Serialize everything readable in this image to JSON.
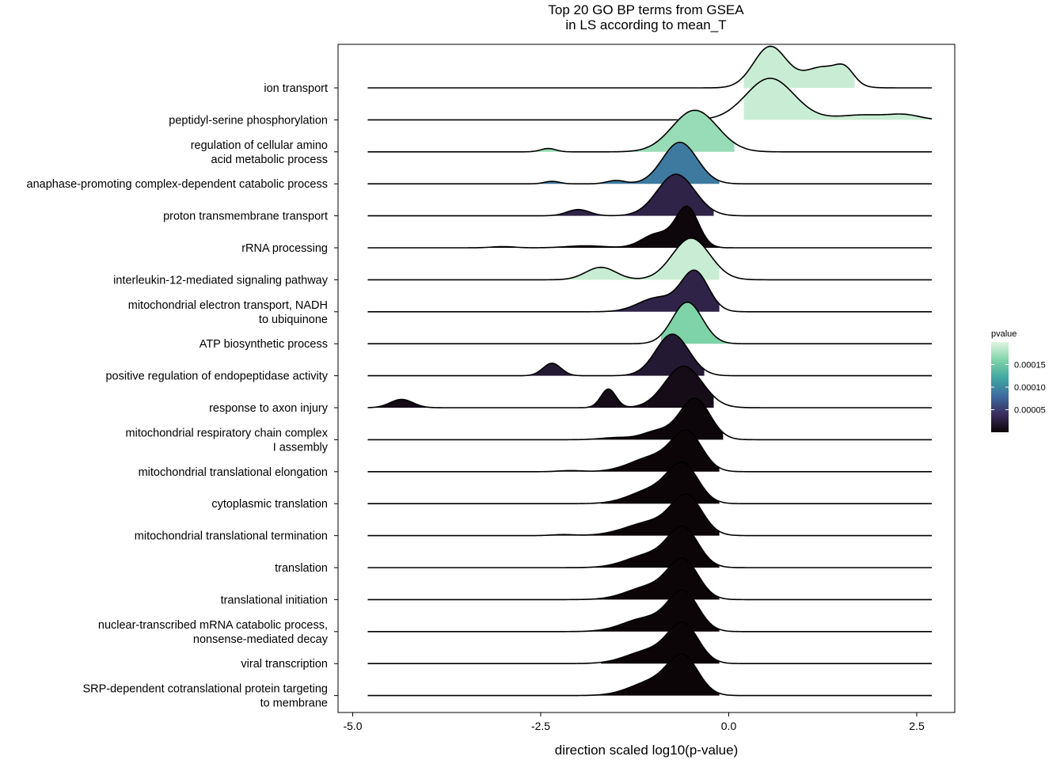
{
  "chart_data": {
    "type": "ridgeline",
    "title_lines": [
      "Top 20 GO BP terms from GSEA",
      "in LS according to mean_T"
    ],
    "xlabel": "direction scaled log10(p-value)",
    "ylabel": "",
    "xlim": [
      -5.2,
      3.0
    ],
    "xticks": [
      {
        "value": -5.0,
        "label": "-5.0"
      },
      {
        "value": -2.5,
        "label": "-2.5"
      },
      {
        "value": 0.0,
        "label": "0.0"
      },
      {
        "value": 2.5,
        "label": "2.5"
      }
    ],
    "grid": false,
    "legend": {
      "title": "pvalue",
      "position": "right",
      "range": [
        0.0,
        0.0002
      ],
      "ticks": [
        {
          "value": 0.00015,
          "label": "0.00015"
        },
        {
          "value": 0.0001,
          "label": "0.00010"
        },
        {
          "value": 5e-05,
          "label": "0.00005"
        }
      ],
      "colors": [
        "#0b0407",
        "#3b2d5e",
        "#3d6ba0",
        "#3fa6a0",
        "#7fd3a8",
        "#e2f5e2"
      ]
    },
    "color_scale": "mako",
    "curve_x_range": [
      -4.8,
      2.7
    ],
    "density_scale": 1.3,
    "series": [
      {
        "name": "ion transport",
        "label_lines": [
          "ion transport"
        ],
        "pvalue": 0.00019,
        "peaks": [
          [
            0.55,
            0.22,
            1.0
          ],
          [
            1.25,
            0.25,
            0.5
          ],
          [
            1.55,
            0.12,
            0.3
          ]
        ],
        "extent": [
          0.2,
          1.7
        ]
      },
      {
        "name": "peptidyl-serine phosphorylation",
        "label_lines": [
          "peptidyl-serine phosphorylation"
        ],
        "pvalue": 0.00019,
        "peaks": [
          [
            0.55,
            0.32,
            1.0
          ],
          [
            1.8,
            0.35,
            0.12
          ],
          [
            2.35,
            0.2,
            0.1
          ]
        ],
        "extent": [
          0.2,
          2.7
        ]
      },
      {
        "name": "regulation of cellular amino acid metabolic process",
        "label_lines": [
          "regulation of cellular amino",
          "acid metabolic process"
        ],
        "pvalue": 0.00017,
        "peaks": [
          [
            -0.45,
            0.3,
            1.0
          ],
          [
            -2.4,
            0.1,
            0.08
          ]
        ],
        "extent": [
          -2.6,
          0.1
        ]
      },
      {
        "name": "anaphase-promoting complex-dependent catabolic process",
        "label_lines": [
          "anaphase-promoting complex-dependent catabolic process"
        ],
        "pvalue": 9e-05,
        "peaks": [
          [
            -0.65,
            0.23,
            1.0
          ],
          [
            -1.5,
            0.12,
            0.08
          ],
          [
            -2.35,
            0.1,
            0.06
          ]
        ],
        "extent": [
          -2.5,
          -0.1
        ]
      },
      {
        "name": "proton transmembrane transport",
        "label_lines": [
          "proton transmembrane transport"
        ],
        "pvalue": 3e-05,
        "peaks": [
          [
            -0.7,
            0.25,
            1.0
          ],
          [
            -2.0,
            0.15,
            0.15
          ]
        ],
        "extent": [
          -2.4,
          -0.2
        ]
      },
      {
        "name": "rRNA processing",
        "label_lines": [
          "rRNA processing"
        ],
        "pvalue": 2e-06,
        "peaks": [
          [
            -0.55,
            0.15,
            1.0
          ],
          [
            -0.95,
            0.2,
            0.35
          ],
          [
            -1.9,
            0.25,
            0.05
          ],
          [
            -3.0,
            0.15,
            0.03
          ]
        ],
        "extent": [
          -3.3,
          -0.1
        ]
      },
      {
        "name": "interleukin-12-mediated signaling pathway",
        "label_lines": [
          "interleukin-12-mediated signaling pathway"
        ],
        "pvalue": 0.00019,
        "peaks": [
          [
            -0.5,
            0.25,
            1.0
          ],
          [
            -1.7,
            0.2,
            0.3
          ]
        ],
        "extent": [
          -2.2,
          -0.1
        ]
      },
      {
        "name": "mitochondrial electron transport, NADH to ubiquinone",
        "label_lines": [
          "mitochondrial electron transport, NADH",
          "to ubiquinone"
        ],
        "pvalue": 3e-05,
        "peaks": [
          [
            -0.45,
            0.18,
            1.0
          ],
          [
            -0.95,
            0.25,
            0.35
          ]
        ],
        "extent": [
          -1.9,
          -0.1
        ]
      },
      {
        "name": "ATP biosynthetic process",
        "label_lines": [
          "ATP biosynthetic process"
        ],
        "pvalue": 0.00016,
        "peaks": [
          [
            -0.55,
            0.2,
            1.0
          ]
        ],
        "extent": [
          -0.9,
          0.05
        ]
      },
      {
        "name": "positive regulation of endopeptidase activity",
        "label_lines": [
          "positive regulation of endopeptidase activity"
        ],
        "pvalue": 2e-05,
        "peaks": [
          [
            -0.75,
            0.22,
            1.0
          ],
          [
            -2.35,
            0.12,
            0.3
          ]
        ],
        "extent": [
          -2.7,
          -0.3
        ]
      },
      {
        "name": "response to axon injury",
        "label_lines": [
          "response to axon injury"
        ],
        "pvalue": 8e-06,
        "peaks": [
          [
            -0.6,
            0.25,
            1.0
          ],
          [
            -1.6,
            0.1,
            0.45
          ],
          [
            -4.35,
            0.15,
            0.2
          ]
        ],
        "extent": [
          -4.8,
          -0.2
        ]
      },
      {
        "name": "mitochondrial respiratory chain complex I assembly",
        "label_lines": [
          "mitochondrial respiratory chain complex",
          "I assembly"
        ],
        "pvalue": 1e-06,
        "peaks": [
          [
            -0.45,
            0.2,
            1.0
          ],
          [
            -0.95,
            0.2,
            0.2
          ],
          [
            -1.5,
            0.2,
            0.05
          ]
        ],
        "extent": [
          -1.8,
          -0.05
        ]
      },
      {
        "name": "mitochondrial translational elongation",
        "label_lines": [
          "mitochondrial translational elongation"
        ],
        "pvalue": 5e-07,
        "peaks": [
          [
            -0.55,
            0.2,
            1.0
          ],
          [
            -1.0,
            0.3,
            0.4
          ],
          [
            -2.1,
            0.15,
            0.03
          ]
        ],
        "extent": [
          -2.5,
          -0.1
        ]
      },
      {
        "name": "cytoplasmic translation",
        "label_lines": [
          "cytoplasmic translation"
        ],
        "pvalue": 5e-07,
        "peaks": [
          [
            -0.6,
            0.2,
            1.0
          ],
          [
            -1.0,
            0.3,
            0.4
          ]
        ],
        "extent": [
          -1.7,
          -0.1
        ]
      },
      {
        "name": "mitochondrial translational termination",
        "label_lines": [
          "mitochondrial translational termination"
        ],
        "pvalue": 5e-07,
        "peaks": [
          [
            -0.55,
            0.2,
            1.0
          ],
          [
            -1.0,
            0.35,
            0.4
          ],
          [
            -2.2,
            0.15,
            0.03
          ]
        ],
        "extent": [
          -2.4,
          -0.1
        ]
      },
      {
        "name": "translation",
        "label_lines": [
          "translation"
        ],
        "pvalue": 5e-07,
        "peaks": [
          [
            -0.6,
            0.2,
            1.0
          ],
          [
            -1.05,
            0.3,
            0.35
          ]
        ],
        "extent": [
          -1.9,
          -0.1
        ]
      },
      {
        "name": "translational initiation",
        "label_lines": [
          "translational initiation"
        ],
        "pvalue": 5e-07,
        "peaks": [
          [
            -0.6,
            0.2,
            1.0
          ],
          [
            -1.05,
            0.3,
            0.35
          ]
        ],
        "extent": [
          -1.9,
          -0.1
        ]
      },
      {
        "name": "nuclear-transcribed mRNA catabolic process, nonsense-mediated decay",
        "label_lines": [
          "nuclear-transcribed mRNA catabolic process,",
          "nonsense-mediated decay"
        ],
        "pvalue": 5e-07,
        "peaks": [
          [
            -0.6,
            0.2,
            1.0
          ],
          [
            -1.1,
            0.3,
            0.35
          ]
        ],
        "extent": [
          -2.3,
          -0.1
        ]
      },
      {
        "name": "viral transcription",
        "label_lines": [
          "viral transcription"
        ],
        "pvalue": 5e-07,
        "peaks": [
          [
            -0.6,
            0.2,
            1.0
          ],
          [
            -1.05,
            0.3,
            0.35
          ]
        ],
        "extent": [
          -1.7,
          -0.1
        ]
      },
      {
        "name": "SRP-dependent cotranslational protein targeting to membrane",
        "label_lines": [
          "SRP-dependent cotranslational protein targeting",
          "to membrane"
        ],
        "pvalue": 5e-07,
        "peaks": [
          [
            -0.6,
            0.2,
            1.0
          ],
          [
            -1.0,
            0.3,
            0.4
          ]
        ],
        "extent": [
          -2.0,
          -0.1
        ]
      }
    ]
  }
}
